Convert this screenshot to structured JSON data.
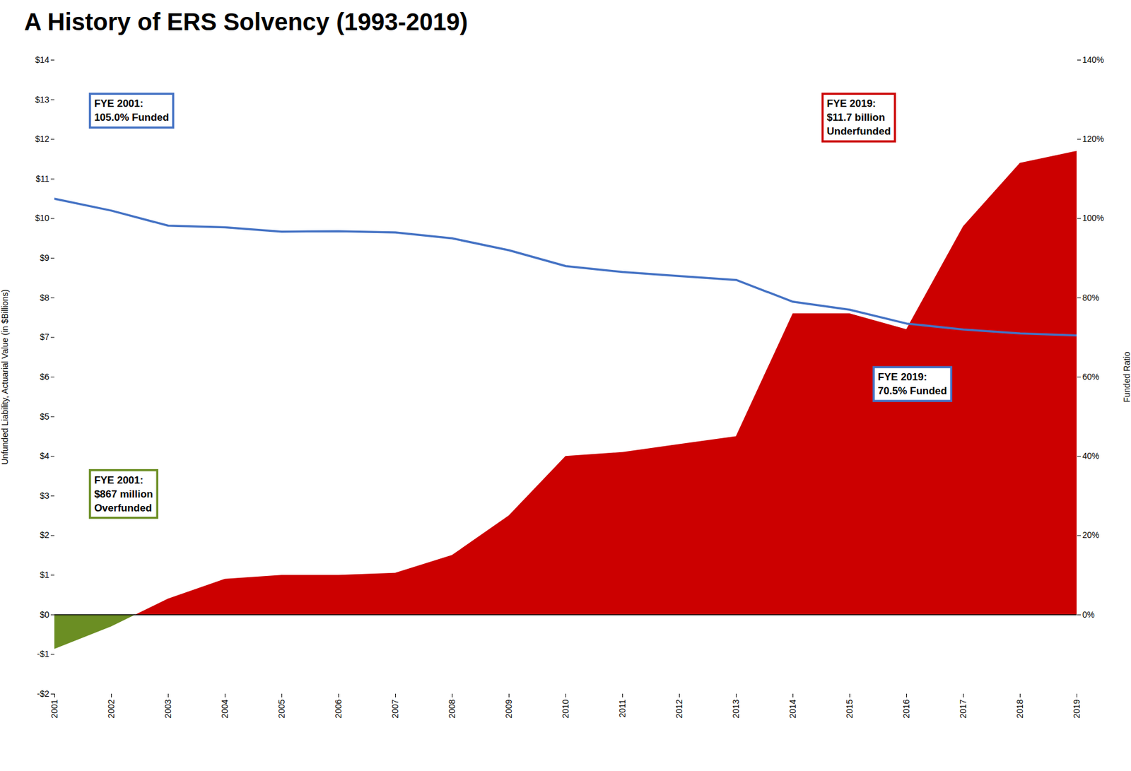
{
  "chart_data": {
    "type": "area",
    "title": "A History of ERS Solvency (1993-2019)",
    "x": [
      2001,
      2002,
      2003,
      2004,
      2005,
      2006,
      2007,
      2008,
      2009,
      2010,
      2011,
      2012,
      2013,
      2014,
      2015,
      2016,
      2017,
      2018,
      2019
    ],
    "xlim": [
      2001,
      2019
    ],
    "xticks": [
      2001,
      2002,
      2003,
      2004,
      2005,
      2006,
      2007,
      2008,
      2009,
      2010,
      2011,
      2012,
      2013,
      2014,
      2015,
      2016,
      2017,
      2018,
      2019
    ],
    "ylabel": "Unfunded Liability, Actuarial Value (in $Billions)",
    "ylim": [
      -2,
      14
    ],
    "yticks": [
      {
        "value": -2,
        "label": "-$2"
      },
      {
        "value": -1,
        "label": "-$1"
      },
      {
        "value": 0,
        "label": "$0"
      },
      {
        "value": 1,
        "label": "$1"
      },
      {
        "value": 2,
        "label": "$2"
      },
      {
        "value": 3,
        "label": "$3"
      },
      {
        "value": 4,
        "label": "$4"
      },
      {
        "value": 5,
        "label": "$5"
      },
      {
        "value": 6,
        "label": "$6"
      },
      {
        "value": 7,
        "label": "$7"
      },
      {
        "value": 8,
        "label": "$8"
      },
      {
        "value": 9,
        "label": "$9"
      },
      {
        "value": 10,
        "label": "$10"
      },
      {
        "value": 11,
        "label": "$11"
      },
      {
        "value": 12,
        "label": "$12"
      },
      {
        "value": 13,
        "label": "$13"
      },
      {
        "value": 14,
        "label": "$14"
      }
    ],
    "y2label": "Funded Ratio",
    "y2lim": [
      -0.2,
      1.4
    ],
    "y2ticks": [
      {
        "value": 0,
        "label": "0%"
      },
      {
        "value": 0.2,
        "label": "20%"
      },
      {
        "value": 0.4,
        "label": "40%"
      },
      {
        "value": 0.6,
        "label": "60%"
      },
      {
        "value": 0.8,
        "label": "80%"
      },
      {
        "value": 1,
        "label": "100%"
      },
      {
        "value": 1.2,
        "label": "120%"
      },
      {
        "value": 1.4,
        "label": "140%"
      }
    ],
    "grid": false,
    "series": [
      {
        "type": "area",
        "colors": [
          "#6B8E23",
          "#6B8E23",
          "#CC0000",
          "#CC0000",
          "#CC0000",
          "#CC0000",
          "#CC0000",
          "#CC0000",
          "#CC0000",
          "#CC0000",
          "#CC0000",
          "#CC0000",
          "#CC0000",
          "#CC0000",
          "#CC0000",
          "#CC0000",
          "#CC0000",
          "#CC0000",
          "#CC0000"
        ],
        "values": [
          -0.867,
          -0.3,
          0.4,
          0.9,
          1.0,
          1.0,
          1.05,
          1.5,
          2.5,
          4.0,
          4.1,
          4.3,
          4.5,
          7.6,
          7.6,
          7.2,
          9.8,
          11.4,
          11.7
        ]
      },
      {
        "type": "line",
        "color": "#4472C4",
        "axis": "y2",
        "values": [
          1.05,
          1.02,
          0.982,
          0.978,
          0.967,
          0.968,
          0.965,
          0.95,
          0.92,
          0.88,
          0.865,
          0.855,
          0.845,
          0.79,
          0.77,
          0.735,
          0.72,
          0.71,
          0.705
        ]
      }
    ],
    "annotations": [
      {
        "text": "FYE 2001:\n105.0% Funded",
        "x": 2001.6,
        "y": 13.2,
        "color": "#4472C4"
      },
      {
        "text": "FYE 2019:\n$11.7 billion\nUnderfunded",
        "x": 2014.5,
        "y": 13.2,
        "color": "#CC0000"
      },
      {
        "text": "FYE 2001:\n$867 million\nOverfunded",
        "x": 2001.6,
        "y": 3.7,
        "color": "#6B8E23"
      },
      {
        "text": "FYE 2019:\n70.5% Funded",
        "x": 2015.4,
        "y": 6.3,
        "color": "#4472C4"
      }
    ]
  }
}
